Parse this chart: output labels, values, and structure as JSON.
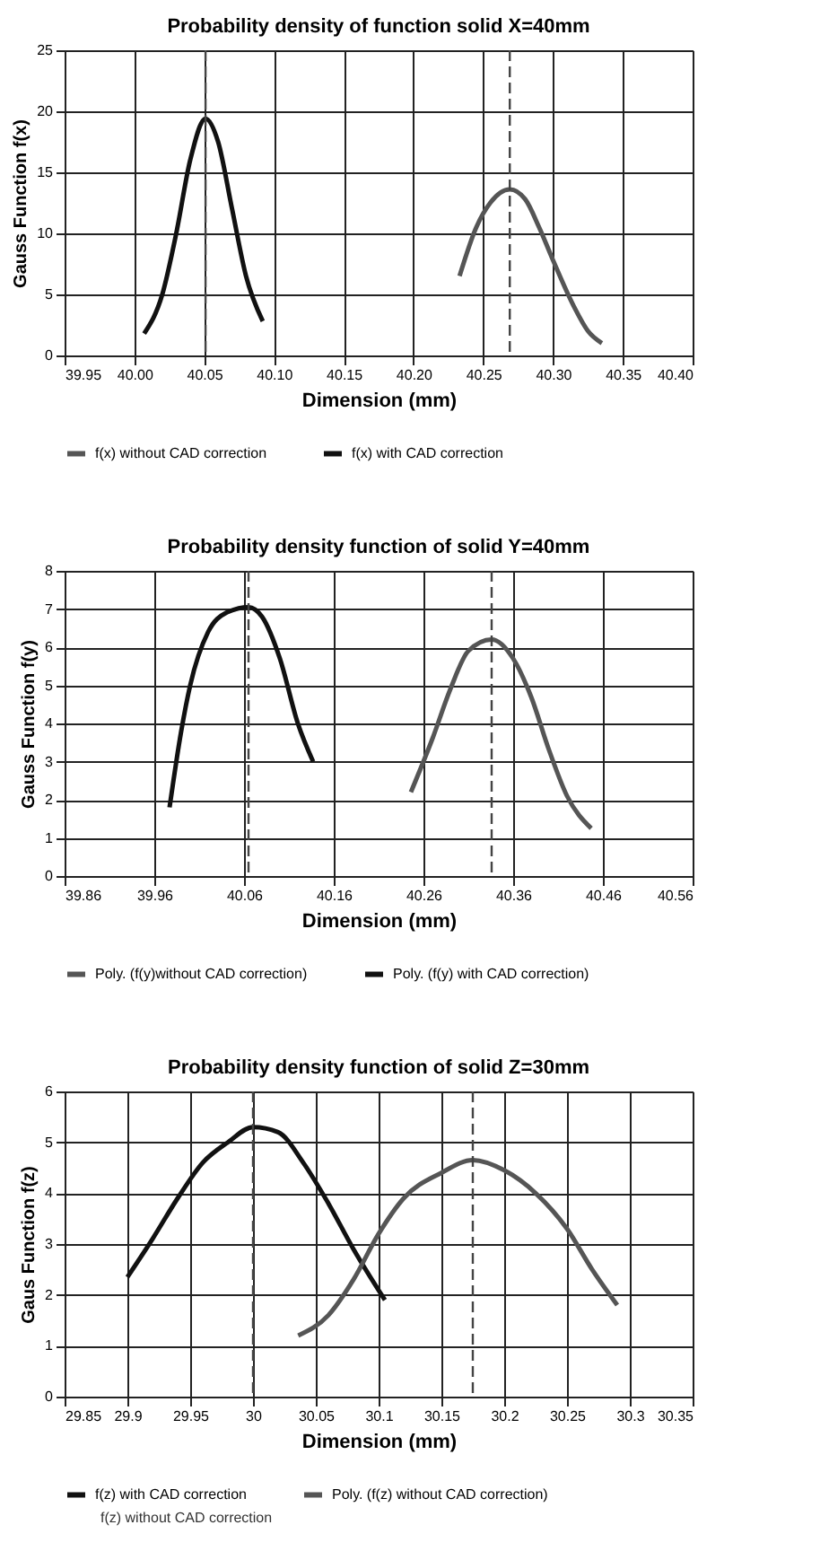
{
  "chart_data": [
    {
      "type": "line",
      "title": "Probability density of function  solid X=40mm",
      "xlabel": "Dimension (mm)",
      "ylabel": "Gauss Function f(x)",
      "xlim": [
        39.95,
        40.4
      ],
      "xticks": [
        39.95,
        {
          "value": 40.0,
          "label": "40.00"
        },
        40.05,
        {
          "value": 40.1,
          "label": "40.10"
        },
        40.15,
        {
          "value": 40.2,
          "label": "40.20"
        },
        40.25,
        {
          "value": 40.3,
          "label": "40.30"
        },
        40.35,
        {
          "value": 40.4,
          "label": "40.40"
        }
      ],
      "ylim": [
        0,
        25
      ],
      "yticks": [
        0,
        5,
        10,
        15,
        20,
        25
      ],
      "grid": true,
      "legend": "bottom",
      "series": [
        {
          "name": "f(x) without CAD correction",
          "color": "#555555",
          "x": [
            40.233,
            40.245,
            40.255,
            40.269,
            40.28,
            40.29,
            40.3,
            40.315,
            40.325,
            40.335
          ],
          "values": [
            6.5,
            10.5,
            12.5,
            13.6,
            12.8,
            10.5,
            7.8,
            4,
            2,
            1.0
          ]
        },
        {
          "name": "f(x) with CAD correction",
          "color": "#111111",
          "x": [
            40.007,
            40.02,
            40.03,
            40.04,
            40.051,
            40.06,
            40.07,
            40.08,
            40.092
          ],
          "values": [
            1.8,
            5,
            10,
            16,
            19.4,
            17.5,
            12,
            6.5,
            2.8
          ]
        }
      ],
      "ref_lines": [
        {
          "axis": "x",
          "value": 40.051,
          "color": "#444444",
          "line_style": "dashed"
        },
        {
          "axis": "x",
          "value": 40.269,
          "color": "#444444",
          "line_style": "dashed"
        }
      ]
    },
    {
      "type": "line",
      "title": "Probability density function of solid Y=40mm",
      "xlabel": "Dimension (mm)",
      "ylabel": "Gauss Function f(y)",
      "xlim": [
        39.86,
        40.56
      ],
      "xticks": [
        39.86,
        39.96,
        40.06,
        40.16,
        40.26,
        40.36,
        40.46,
        40.56
      ],
      "ylim": [
        0,
        8
      ],
      "yticks": [
        0,
        1,
        2,
        3,
        4,
        5,
        6,
        7,
        8
      ],
      "grid": true,
      "legend": "bottom",
      "series": [
        {
          "name": "Poly. (f(y)without CAD correction)",
          "color": "#555555",
          "x": [
            40.246,
            40.27,
            40.29,
            40.31,
            40.336,
            40.36,
            40.38,
            40.4,
            40.42,
            40.447
          ],
          "values": [
            2.2,
            3.6,
            4.9,
            5.9,
            6.2,
            5.7,
            4.7,
            3.3,
            2.1,
            1.25
          ]
        },
        {
          "name": "Poly. (f(y) with CAD correction)",
          "color": "#111111",
          "x": [
            39.977,
            39.99,
            40.0,
            40.02,
            40.04,
            40.065,
            40.08,
            40.1,
            40.12,
            40.137
          ],
          "values": [
            1.8,
            3.8,
            5.0,
            6.4,
            6.9,
            7.05,
            6.8,
            5.7,
            4.0,
            3.0
          ]
        }
      ],
      "ref_lines": [
        {
          "axis": "x",
          "value": 40.065,
          "color": "#444444",
          "line_style": "dashed"
        },
        {
          "axis": "x",
          "value": 40.336,
          "color": "#444444",
          "line_style": "dashed"
        }
      ]
    },
    {
      "type": "line",
      "title": "Probability density function of solid Z=30mm",
      "xlabel": "Dimension  (mm)",
      "ylabel": "Gaus Function  f(z)",
      "xlim": [
        29.85,
        30.35
      ],
      "xticks": [
        29.85,
        29.9,
        29.95,
        30,
        30.05,
        30.1,
        30.15,
        30.2,
        30.25,
        30.3,
        30.35
      ],
      "ylim": [
        0,
        6
      ],
      "yticks": [
        0,
        1,
        2,
        3,
        4,
        5,
        6
      ],
      "grid": true,
      "legend": "bottom",
      "annotations": [
        "f(z) without CAD correction"
      ],
      "series": [
        {
          "name": "f(z) with CAD correction",
          "color": "#111111",
          "x": [
            29.9,
            29.92,
            29.94,
            29.96,
            29.98,
            30.0,
            30.02,
            30.04,
            30.06,
            30.08,
            30.105
          ],
          "values": [
            2.35,
            3.1,
            3.9,
            4.6,
            5.0,
            5.3,
            5.2,
            4.6,
            3.8,
            2.9,
            1.9
          ]
        },
        {
          "name": "Poly. (f(z) without CAD correction)",
          "color": "#555555",
          "x": [
            30.036,
            30.06,
            30.08,
            30.1,
            30.12,
            30.15,
            30.175,
            30.2,
            30.225,
            30.25,
            30.27,
            30.29
          ],
          "values": [
            1.2,
            1.6,
            2.3,
            3.2,
            3.9,
            4.4,
            4.65,
            4.45,
            4.0,
            3.3,
            2.5,
            1.8
          ]
        }
      ],
      "ref_lines": [
        {
          "axis": "x",
          "value": 30.0,
          "color": "#444444",
          "line_style": "dashed"
        },
        {
          "axis": "x",
          "value": 30.175,
          "color": "#444444",
          "line_style": "dashed"
        }
      ]
    }
  ]
}
